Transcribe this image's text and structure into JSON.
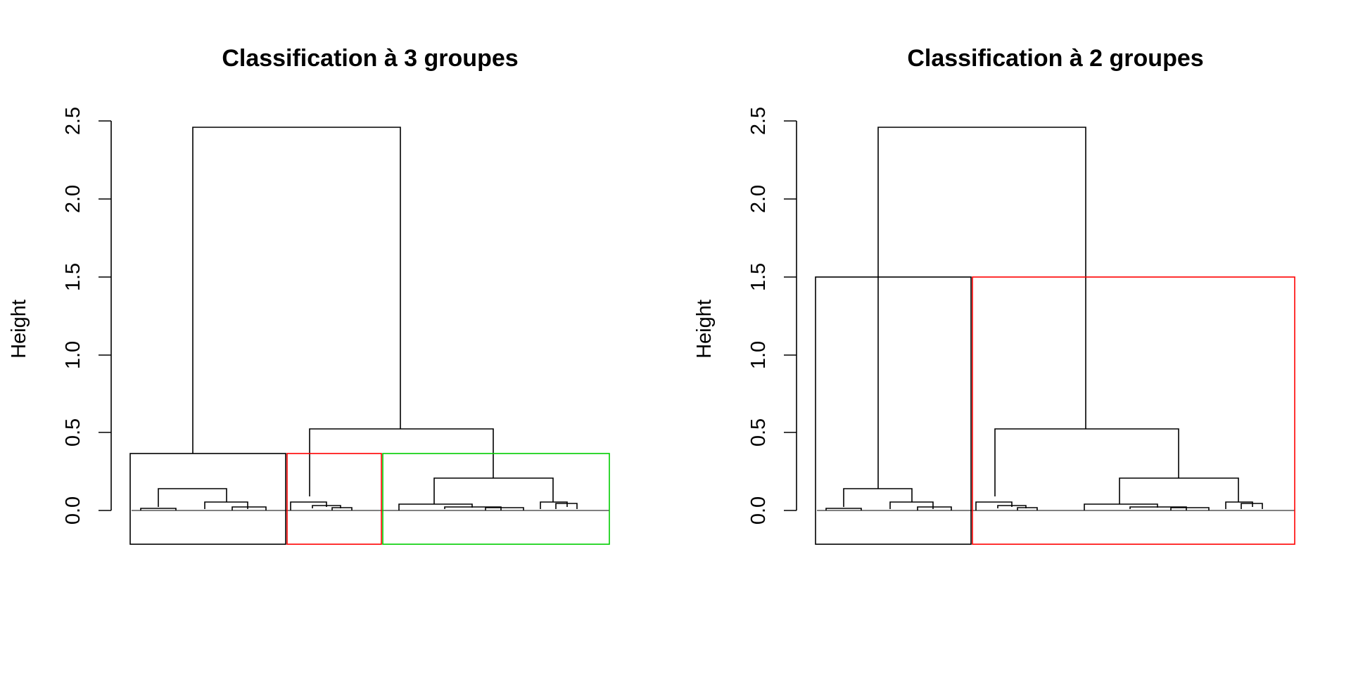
{
  "chart_data": [
    {
      "type": "dendrogram",
      "title": "Classification à 3 groupes",
      "ylabel": "Height",
      "ylim": [
        0,
        2.5
      ],
      "yticks": [
        "0.0",
        "0.5",
        "1.0",
        "1.5",
        "2.0",
        "2.5"
      ],
      "root_height": 2.46,
      "cut_height": 0.37,
      "n_clusters": 3,
      "clusters": [
        {
          "leaf_count": 60,
          "merge_height": 0.14,
          "border_color": "#000000"
        },
        {
          "leaf_count": 37,
          "merge_height": 0.06,
          "border_color": "#ff0000"
        },
        {
          "leaf_count": 88,
          "merge_height": 0.21,
          "border_color": "#00cd00"
        }
      ],
      "internal_merges": [
        {
          "between": "clusters 2 and 3",
          "height": 0.53
        },
        {
          "between": "cluster 1 and clusters 2+3",
          "height": 2.46
        }
      ]
    },
    {
      "type": "dendrogram",
      "title": "Classification à 2 groupes",
      "ylabel": "Height",
      "ylim": [
        0,
        2.5
      ],
      "yticks": [
        "0.0",
        "0.5",
        "1.0",
        "1.5",
        "2.0",
        "2.5"
      ],
      "root_height": 2.46,
      "cut_height": 1.5,
      "n_clusters": 2,
      "clusters": [
        {
          "leaf_count": 60,
          "merge_height": 0.14,
          "border_color": "#000000"
        },
        {
          "leaf_count": 125,
          "merge_height": 0.53,
          "border_color": "#ff0000"
        }
      ],
      "internal_merges": [
        {
          "between": "cluster 1 and cluster 2",
          "height": 2.46
        }
      ]
    }
  ]
}
